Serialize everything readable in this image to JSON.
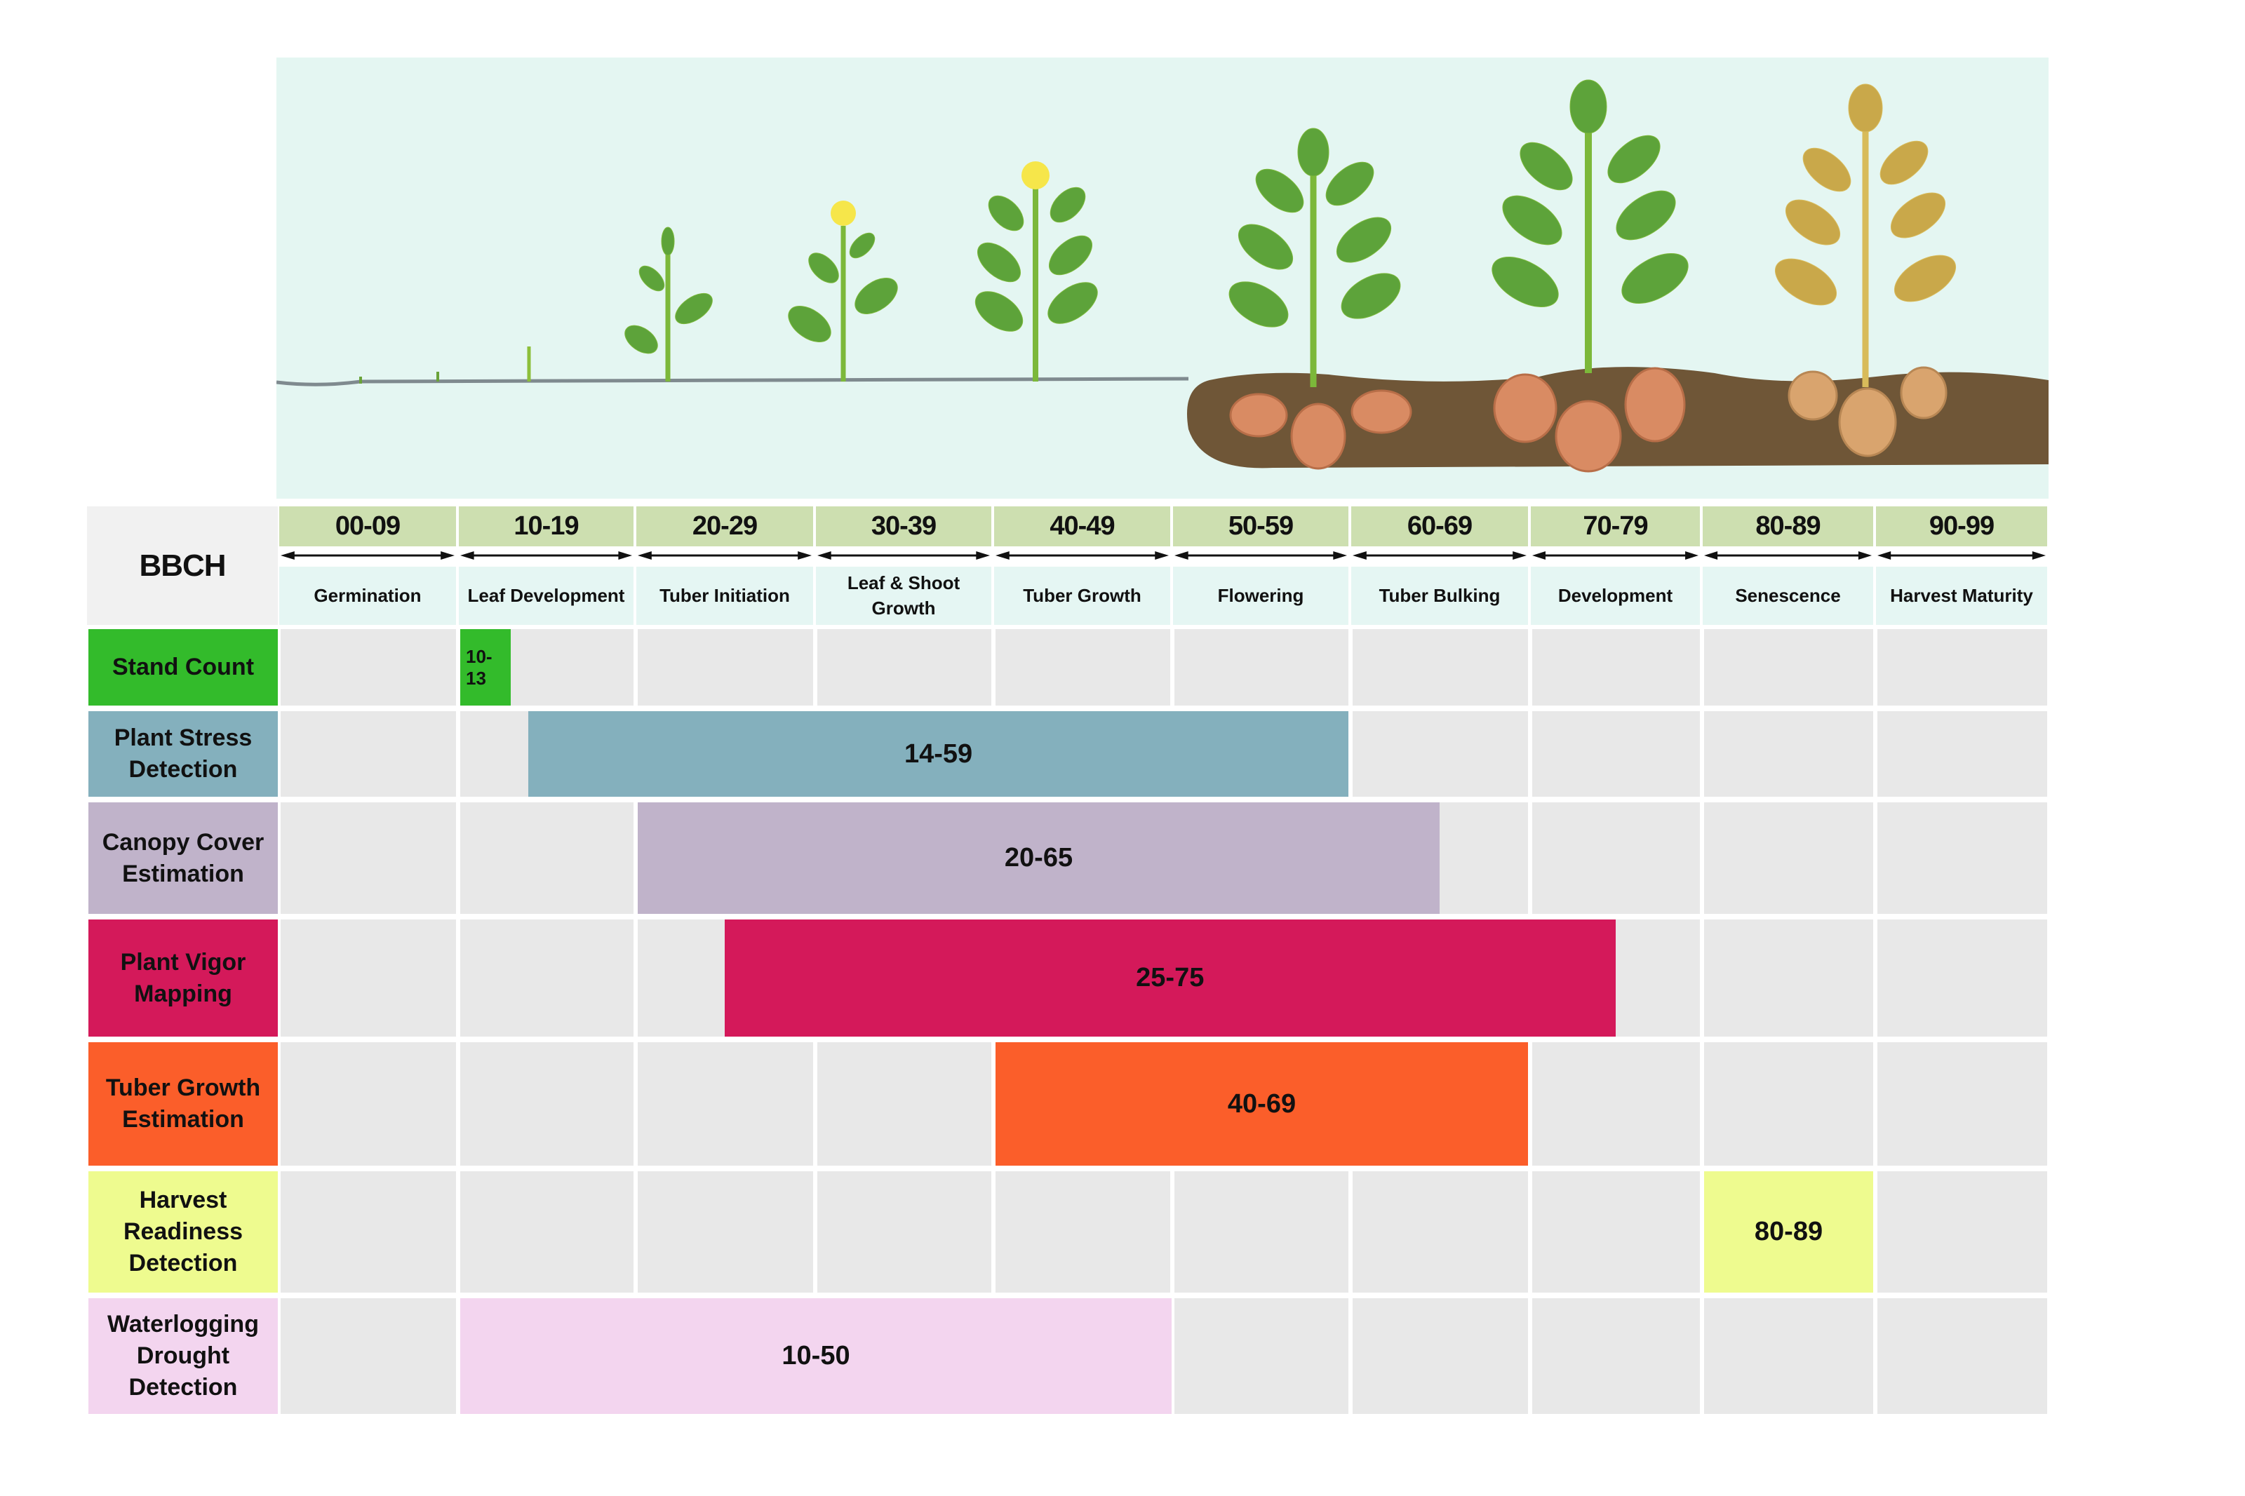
{
  "header": {
    "bbch_label": "BBCH"
  },
  "stages": [
    {
      "code": "00-09",
      "phase": "Germination"
    },
    {
      "code": "10-19",
      "phase": "Leaf Development"
    },
    {
      "code": "20-29",
      "phase": "Tuber Initiation"
    },
    {
      "code": "30-39",
      "phase": "Leaf & Shoot Growth"
    },
    {
      "code": "40-49",
      "phase": "Tuber Growth"
    },
    {
      "code": "50-59",
      "phase": "Flowering"
    },
    {
      "code": "60-69",
      "phase": "Tuber Bulking"
    },
    {
      "code": "70-79",
      "phase": "Development"
    },
    {
      "code": "80-89",
      "phase": "Senescence"
    },
    {
      "code": "90-99",
      "phase": "Harvest Maturity"
    }
  ],
  "rows": [
    {
      "label": "Stand Count",
      "range": "10-13",
      "start": 10,
      "end": 13,
      "color": "#33bb2b"
    },
    {
      "label": "Plant Stress Detection",
      "range": "14-59",
      "start": 14,
      "end": 59,
      "color": "#84b0bd"
    },
    {
      "label": "Canopy Cover Estimation",
      "range": "20-65",
      "start": 20,
      "end": 65,
      "color": "#c0b3ca"
    },
    {
      "label": "Plant Vigor Mapping",
      "range": "25-75",
      "start": 25,
      "end": 75,
      "color": "#d4195a"
    },
    {
      "label": "Tuber Growth Estimation",
      "range": "40-69",
      "start": 40,
      "end": 69,
      "color": "#fb5e2a"
    },
    {
      "label": "Harvest Readiness Detection",
      "range": "80-89",
      "start": 80,
      "end": 89,
      "color": "#eefb8f"
    },
    {
      "label": "Waterlogging Drought Detection",
      "range": "10-50",
      "start": 10,
      "end": 50,
      "color": "#f3d5ef"
    }
  ],
  "illustration": {
    "description": "Potato growth stages from germination to harvest maturity",
    "sky_color": "#e4f6f2",
    "soil_color": "#6f5637",
    "leaf_color": "#5da33a",
    "senescent_leaf_color": "#c9a84a",
    "tuber_color": "#d98b63"
  }
}
